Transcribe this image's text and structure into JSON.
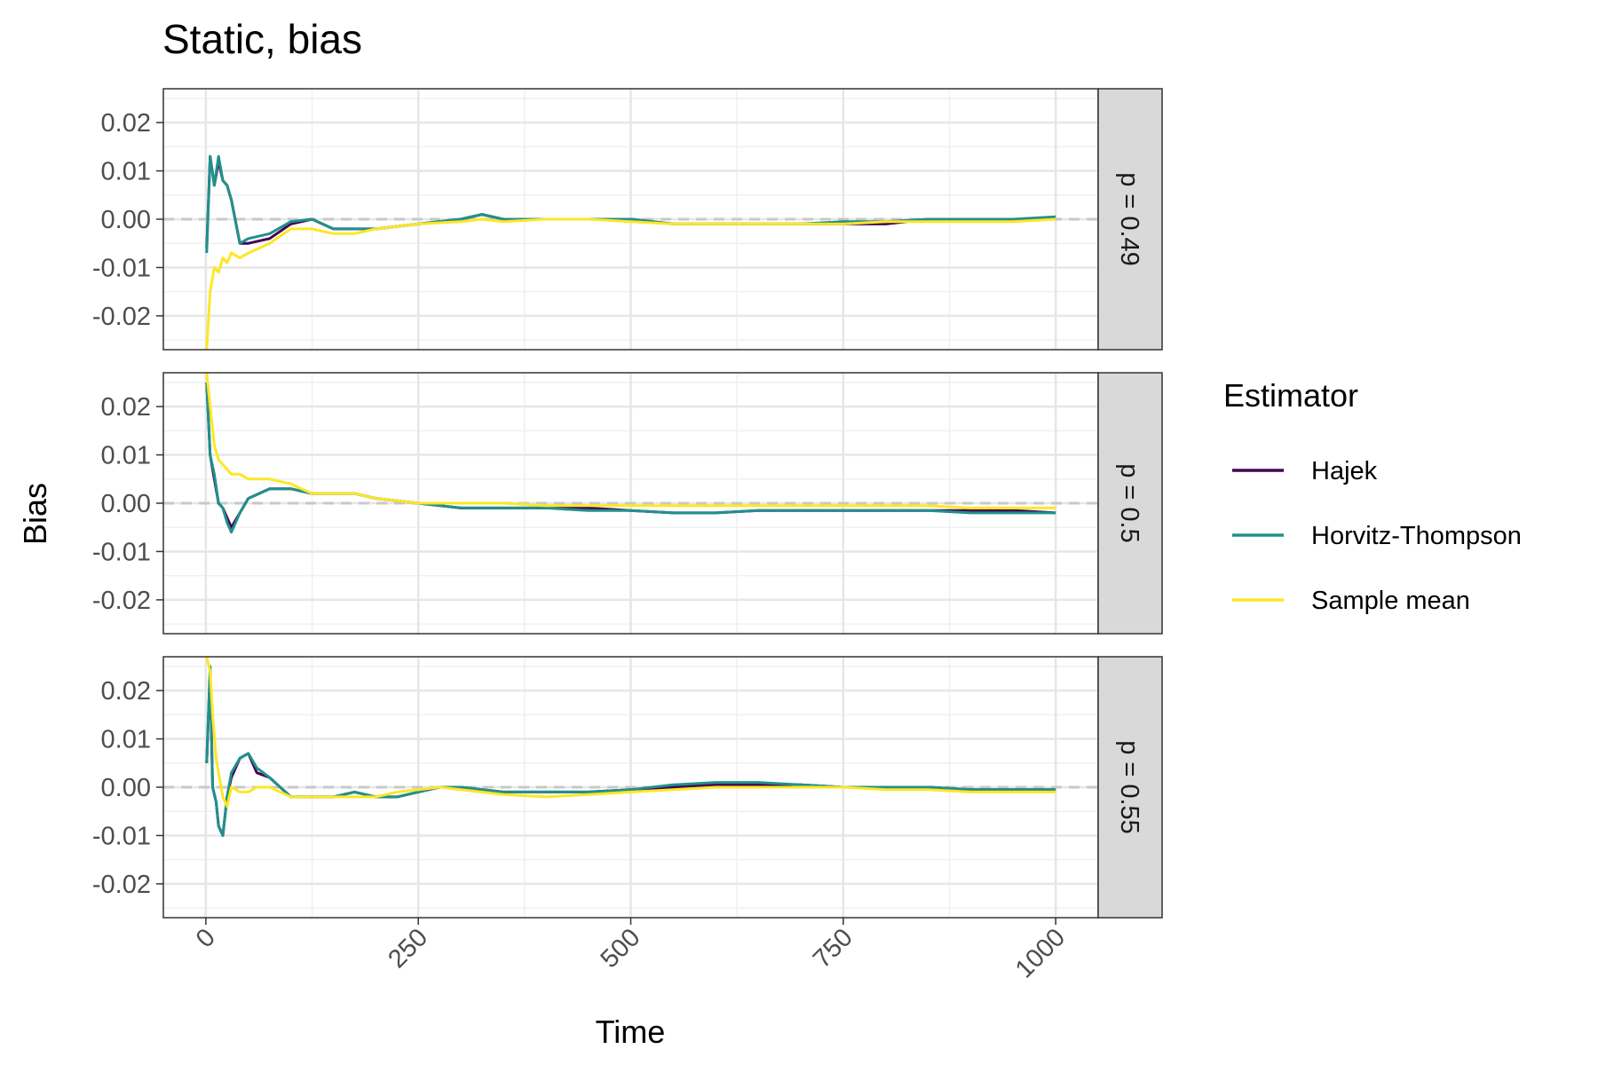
{
  "chart_data": {
    "type": "line",
    "title": "Static, bias",
    "xlabel": "Time",
    "ylabel": "Bias",
    "xlim": [
      -50,
      1050
    ],
    "ylim": [
      -0.027,
      0.027
    ],
    "x_ticks": [
      "0",
      "250",
      "500",
      "750",
      "1000"
    ],
    "y_ticks": [
      "0.02",
      "0.01",
      "0.00",
      "-0.01",
      "-0.02"
    ],
    "reference_line": 0.0,
    "grid": true,
    "legend": {
      "title": "Estimator",
      "position": "right",
      "entries": [
        "Hajek",
        "Horvitz-Thompson",
        "Sample mean"
      ]
    },
    "colors": {
      "Hajek": "#440154",
      "Horvitz-Thompson": "#21908C",
      "Sample mean": "#FDE725"
    },
    "panels": [
      {
        "label": "p = 0.49",
        "series": [
          {
            "name": "Hajek",
            "x": [
              1,
              5,
              10,
              15,
              20,
              25,
              30,
              40,
              50,
              75,
              100,
              125,
              150,
              175,
              200,
              250,
              300,
              325,
              350,
              400,
              450,
              500,
              550,
              600,
              650,
              700,
              750,
              800,
              850,
              900,
              950,
              1000
            ],
            "y": [
              -0.006,
              0.013,
              0.007,
              0.012,
              0.008,
              0.007,
              0.004,
              -0.005,
              -0.005,
              -0.004,
              -0.001,
              0.0,
              -0.002,
              -0.002,
              -0.002,
              -0.001,
              0.0,
              0.001,
              0.0,
              0.0,
              0.0,
              0.0,
              -0.001,
              -0.001,
              -0.001,
              -0.001,
              -0.001,
              -0.001,
              0.0,
              0.0,
              0.0,
              0.0
            ]
          },
          {
            "name": "Horvitz-Thompson",
            "x": [
              1,
              5,
              10,
              15,
              20,
              25,
              30,
              40,
              50,
              75,
              100,
              125,
              150,
              175,
              200,
              250,
              300,
              325,
              350,
              400,
              450,
              500,
              550,
              600,
              650,
              700,
              750,
              800,
              850,
              900,
              950,
              1000
            ],
            "y": [
              -0.007,
              0.013,
              0.007,
              0.013,
              0.008,
              0.007,
              0.004,
              -0.005,
              -0.004,
              -0.003,
              -0.0005,
              0.0,
              -0.002,
              -0.002,
              -0.002,
              -0.001,
              0.0,
              0.001,
              0.0,
              0.0,
              0.0,
              0.0,
              -0.001,
              -0.001,
              -0.001,
              -0.001,
              -0.0005,
              -0.0005,
              0.0,
              0.0,
              0.0,
              0.0005
            ]
          },
          {
            "name": "Sample mean",
            "x": [
              1,
              5,
              10,
              15,
              20,
              25,
              30,
              40,
              50,
              75,
              100,
              125,
              150,
              175,
              200,
              250,
              300,
              325,
              350,
              400,
              450,
              500,
              550,
              600,
              650,
              700,
              750,
              800,
              850,
              900,
              950,
              1000
            ],
            "y": [
              -0.027,
              -0.015,
              -0.01,
              -0.011,
              -0.008,
              -0.009,
              -0.007,
              -0.008,
              -0.007,
              -0.005,
              -0.002,
              -0.002,
              -0.003,
              -0.003,
              -0.002,
              -0.001,
              -0.0005,
              0.0,
              -0.0005,
              0.0,
              0.0,
              -0.0005,
              -0.001,
              -0.001,
              -0.001,
              -0.001,
              -0.001,
              -0.0005,
              -0.0005,
              -0.0005,
              -0.0005,
              0.0
            ]
          }
        ]
      },
      {
        "label": "p = 0.5",
        "series": [
          {
            "name": "Hajek",
            "x": [
              1,
              5,
              10,
              15,
              20,
              25,
              30,
              40,
              50,
              75,
              100,
              125,
              150,
              175,
              200,
              250,
              300,
              350,
              400,
              450,
              500,
              550,
              600,
              650,
              700,
              750,
              800,
              850,
              900,
              950,
              1000
            ],
            "y": [
              0.025,
              0.01,
              0.005,
              0.0,
              -0.001,
              -0.003,
              -0.005,
              -0.002,
              0.001,
              0.003,
              0.003,
              0.002,
              0.002,
              0.002,
              0.001,
              0.0,
              -0.001,
              -0.001,
              -0.001,
              -0.001,
              -0.0015,
              -0.002,
              -0.002,
              -0.0015,
              -0.0015,
              -0.0015,
              -0.0015,
              -0.0015,
              -0.0015,
              -0.0015,
              -0.002
            ]
          },
          {
            "name": "Horvitz-Thompson",
            "x": [
              1,
              5,
              10,
              15,
              20,
              25,
              30,
              40,
              50,
              75,
              100,
              125,
              150,
              175,
              200,
              250,
              300,
              350,
              400,
              450,
              500,
              550,
              600,
              650,
              700,
              750,
              800,
              850,
              900,
              950,
              1000
            ],
            "y": [
              0.025,
              0.01,
              0.006,
              0.0,
              -0.001,
              -0.004,
              -0.006,
              -0.002,
              0.001,
              0.003,
              0.003,
              0.002,
              0.002,
              0.002,
              0.001,
              0.0,
              -0.001,
              -0.001,
              -0.001,
              -0.0015,
              -0.0015,
              -0.002,
              -0.002,
              -0.0015,
              -0.0015,
              -0.0015,
              -0.0015,
              -0.0015,
              -0.002,
              -0.002,
              -0.002
            ]
          },
          {
            "name": "Sample mean",
            "x": [
              1,
              5,
              10,
              15,
              20,
              25,
              30,
              40,
              50,
              75,
              100,
              125,
              150,
              175,
              200,
              250,
              300,
              350,
              400,
              450,
              500,
              550,
              600,
              650,
              700,
              750,
              800,
              850,
              900,
              950,
              1000
            ],
            "y": [
              0.027,
              0.02,
              0.012,
              0.009,
              0.008,
              0.007,
              0.006,
              0.006,
              0.005,
              0.005,
              0.004,
              0.002,
              0.002,
              0.002,
              0.001,
              0.0,
              0.0,
              0.0,
              -0.0005,
              -0.0005,
              -0.0005,
              -0.0005,
              -0.0005,
              -0.0005,
              -0.0005,
              -0.0005,
              -0.0005,
              -0.0005,
              -0.001,
              -0.001,
              -0.001
            ]
          }
        ]
      },
      {
        "label": "p = 0.55",
        "series": [
          {
            "name": "Hajek",
            "x": [
              1,
              5,
              8,
              12,
              15,
              20,
              25,
              30,
              40,
              50,
              60,
              75,
              100,
              125,
              150,
              175,
              200,
              225,
              250,
              275,
              300,
              350,
              400,
              450,
              500,
              550,
              600,
              650,
              700,
              750,
              800,
              850,
              900,
              950,
              1000
            ],
            "y": [
              0.005,
              0.024,
              0.0,
              -0.003,
              -0.008,
              -0.01,
              -0.002,
              0.002,
              0.006,
              0.007,
              0.003,
              0.002,
              -0.002,
              -0.002,
              -0.002,
              -0.001,
              -0.002,
              -0.002,
              -0.001,
              0.0,
              0.0,
              -0.001,
              -0.001,
              -0.001,
              -0.0005,
              0.0,
              0.0005,
              0.0005,
              0.0005,
              0.0,
              0.0,
              0.0,
              -0.0005,
              -0.0005,
              -0.0005
            ]
          },
          {
            "name": "Horvitz-Thompson",
            "x": [
              1,
              5,
              8,
              12,
              15,
              20,
              25,
              30,
              40,
              50,
              60,
              75,
              100,
              125,
              150,
              175,
              200,
              225,
              250,
              275,
              300,
              350,
              400,
              450,
              500,
              550,
              600,
              650,
              700,
              750,
              800,
              850,
              900,
              950,
              1000
            ],
            "y": [
              0.005,
              0.025,
              0.0,
              -0.003,
              -0.008,
              -0.01,
              -0.002,
              0.003,
              0.006,
              0.007,
              0.004,
              0.002,
              -0.002,
              -0.002,
              -0.002,
              -0.001,
              -0.002,
              -0.002,
              -0.001,
              0.0,
              0.0,
              -0.001,
              -0.001,
              -0.001,
              -0.0005,
              0.0005,
              0.001,
              0.001,
              0.0005,
              0.0,
              0.0,
              0.0,
              -0.0005,
              -0.0005,
              -0.0005
            ]
          },
          {
            "name": "Sample mean",
            "x": [
              1,
              5,
              8,
              12,
              15,
              20,
              25,
              30,
              40,
              50,
              60,
              75,
              100,
              125,
              150,
              175,
              200,
              225,
              250,
              275,
              300,
              350,
              400,
              450,
              500,
              550,
              600,
              650,
              700,
              750,
              800,
              850,
              900,
              950,
              1000
            ],
            "y": [
              0.027,
              0.024,
              0.015,
              0.006,
              0.003,
              -0.002,
              -0.004,
              0.0,
              -0.001,
              -0.001,
              0.0,
              0.0,
              -0.002,
              -0.002,
              -0.002,
              -0.002,
              -0.002,
              -0.001,
              -0.0005,
              0.0,
              -0.0005,
              -0.0015,
              -0.002,
              -0.0015,
              -0.001,
              -0.0005,
              0.0,
              0.0,
              0.0,
              0.0,
              -0.0005,
              -0.0005,
              -0.001,
              -0.001,
              -0.001
            ]
          }
        ]
      }
    ]
  }
}
